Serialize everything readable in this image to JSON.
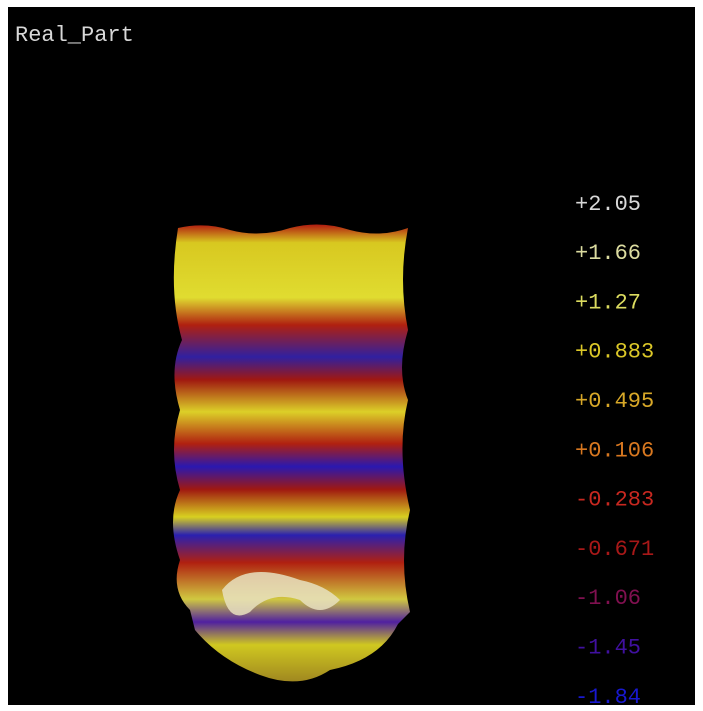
{
  "title": "Real_Part",
  "legend": [
    {
      "label": "+2.05",
      "color": "#d8d8d8"
    },
    {
      "label": "+1.66",
      "color": "#dcdca0"
    },
    {
      "label": "+1.27",
      "color": "#dcdc60"
    },
    {
      "label": "+0.883",
      "color": "#dcc828"
    },
    {
      "label": "+0.495",
      "color": "#d8a828"
    },
    {
      "label": "+0.106",
      "color": "#d87820"
    },
    {
      "label": "-0.283",
      "color": "#c82820"
    },
    {
      "label": "-0.671",
      "color": "#a81818"
    },
    {
      "label": "-1.06",
      "color": "#801050"
    },
    {
      "label": "-1.45",
      "color": "#4010a0"
    },
    {
      "label": "-1.84",
      "color": "#1818d0"
    }
  ]
}
